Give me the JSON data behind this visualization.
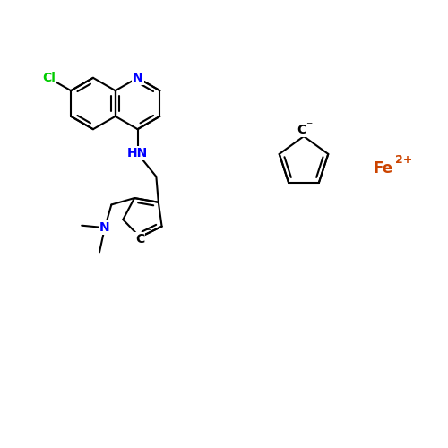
{
  "background_color": "#ffffff",
  "bond_color": "#000000",
  "N_color": "#0000ff",
  "Cl_color": "#00cc00",
  "Fe_color": "#cc4400",
  "figsize": [
    5.0,
    5.0
  ],
  "dpi": 100,
  "xlim": [
    0,
    10
  ],
  "ylim": [
    0,
    10
  ],
  "bond_lw": 1.5,
  "font_size": 10
}
